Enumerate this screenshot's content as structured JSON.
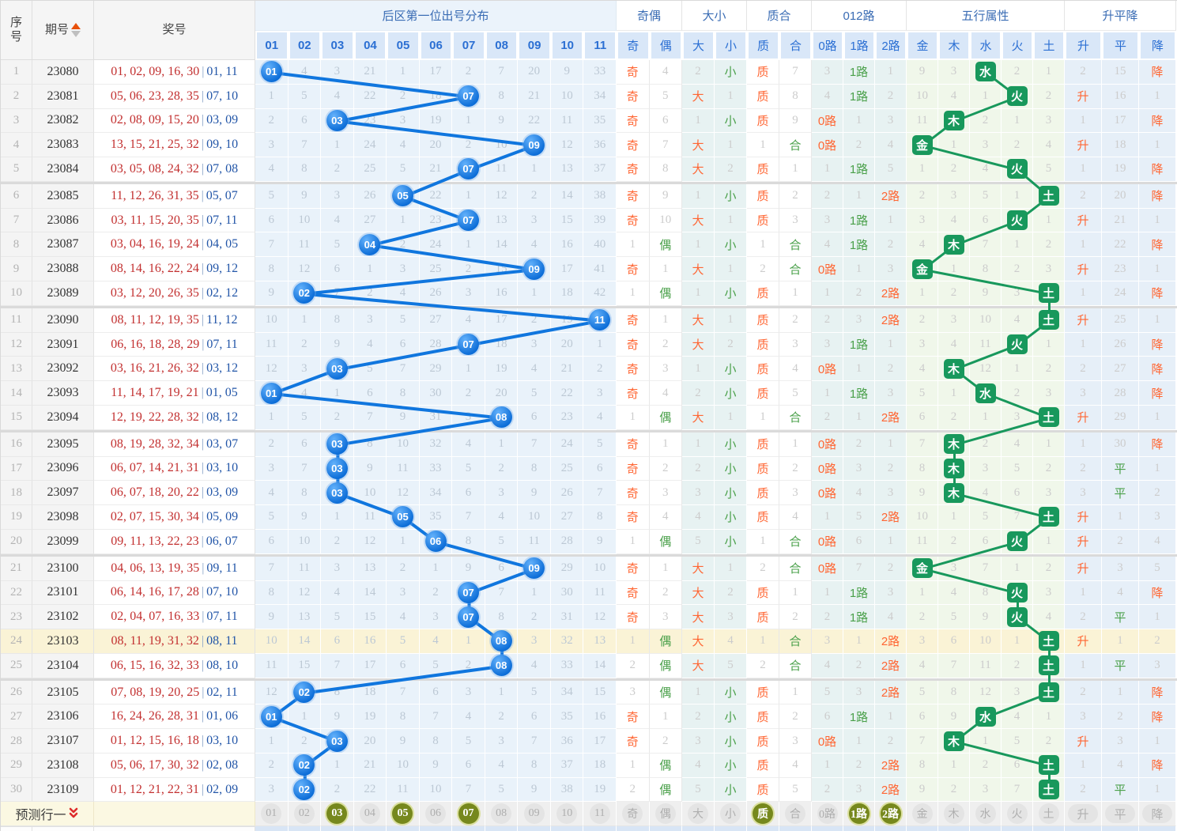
{
  "header": {
    "col_seq": "序号",
    "col_period": "期号",
    "col_numbers": "奖号",
    "dist_title": "后区第一位出号分布",
    "dist_cols": [
      "01",
      "02",
      "03",
      "04",
      "05",
      "06",
      "07",
      "08",
      "09",
      "10",
      "11"
    ],
    "groups": [
      {
        "label": "奇偶",
        "cols": [
          "奇",
          "偶"
        ]
      },
      {
        "label": "大小",
        "cols": [
          "大",
          "小"
        ]
      },
      {
        "label": "质合",
        "cols": [
          "质",
          "合"
        ]
      },
      {
        "label": "012路",
        "cols": [
          "0路",
          "1路",
          "2路"
        ]
      },
      {
        "label": "五行属性",
        "cols": [
          "金",
          "木",
          "水",
          "火",
          "土"
        ]
      },
      {
        "label": "升平降",
        "cols": [
          "升",
          "平",
          "降"
        ]
      }
    ]
  },
  "colors": {
    "ball_blue": "#1076de",
    "element_green": "#18985c",
    "hit_orange": "#ff6633",
    "hit_green": "#4aa04a",
    "highlight_row": "#faf3d6",
    "prediction_olive": "#76881d"
  },
  "rows": [
    {
      "s": 1,
      "p": "23080",
      "f": "01, 02, 09, 16, 30",
      "b": "01, 11",
      "d": [
        "01",
        4,
        3,
        21,
        1,
        17,
        2,
        7,
        20,
        9,
        33
      ],
      "oe": [
        "奇",
        4
      ],
      "ds": [
        2,
        "小"
      ],
      "zh": [
        "质",
        7
      ],
      "lu": [
        3,
        "1路",
        1
      ],
      "wx": [
        9,
        3,
        "水",
        2,
        1
      ],
      "sp": [
        2,
        15,
        "降"
      ],
      "hl": false
    },
    {
      "s": 2,
      "p": "23081",
      "f": "05, 06, 23, 28, 35",
      "b": "07, 10",
      "d": [
        1,
        5,
        4,
        22,
        2,
        18,
        "07",
        8,
        21,
        10,
        34
      ],
      "oe": [
        "奇",
        5
      ],
      "ds": [
        "大",
        1
      ],
      "zh": [
        "质",
        8
      ],
      "lu": [
        4,
        "1路",
        2
      ],
      "wx": [
        10,
        4,
        1,
        "火",
        2
      ],
      "sp": [
        "升",
        16,
        1
      ],
      "hl": false
    },
    {
      "s": 3,
      "p": "23082",
      "f": "02, 08, 09, 15, 20",
      "b": "03, 09",
      "d": [
        2,
        6,
        "03",
        23,
        3,
        19,
        1,
        9,
        22,
        11,
        35
      ],
      "oe": [
        "奇",
        6
      ],
      "ds": [
        1,
        "小"
      ],
      "zh": [
        "质",
        9
      ],
      "lu": [
        "0路",
        1,
        3
      ],
      "wx": [
        11,
        "木",
        2,
        1,
        3
      ],
      "sp": [
        1,
        17,
        "降"
      ],
      "hl": false
    },
    {
      "s": 4,
      "p": "23083",
      "f": "13, 15, 21, 25, 32",
      "b": "09, 10",
      "d": [
        3,
        7,
        1,
        24,
        4,
        20,
        2,
        10,
        "09",
        12,
        36
      ],
      "oe": [
        "奇",
        7
      ],
      "ds": [
        "大",
        1
      ],
      "zh": [
        1,
        "合"
      ],
      "lu": [
        "0路",
        2,
        4
      ],
      "wx": [
        "金",
        1,
        3,
        2,
        4
      ],
      "sp": [
        "升",
        18,
        1
      ],
      "hl": false
    },
    {
      "s": 5,
      "p": "23084",
      "f": "03, 05, 08, 24, 32",
      "b": "07, 08",
      "d": [
        4,
        8,
        2,
        25,
        5,
        21,
        "07",
        11,
        1,
        13,
        37
      ],
      "oe": [
        "奇",
        8
      ],
      "ds": [
        "大",
        2
      ],
      "zh": [
        "质",
        1
      ],
      "lu": [
        1,
        "1路",
        5
      ],
      "wx": [
        1,
        2,
        4,
        "火",
        5
      ],
      "sp": [
        1,
        19,
        "降"
      ],
      "hl": false
    },
    {
      "s": 6,
      "p": "23085",
      "f": "11, 12, 26, 31, 35",
      "b": "05, 07",
      "d": [
        5,
        9,
        3,
        26,
        "05",
        22,
        1,
        12,
        2,
        14,
        38
      ],
      "oe": [
        "奇",
        9
      ],
      "ds": [
        1,
        "小"
      ],
      "zh": [
        "质",
        2
      ],
      "lu": [
        2,
        1,
        "2路"
      ],
      "wx": [
        2,
        3,
        5,
        1,
        "土"
      ],
      "sp": [
        2,
        20,
        "降"
      ],
      "hl": false
    },
    {
      "s": 7,
      "p": "23086",
      "f": "03, 11, 15, 20, 35",
      "b": "07, 11",
      "d": [
        6,
        10,
        4,
        27,
        1,
        23,
        "07",
        13,
        3,
        15,
        39
      ],
      "oe": [
        "奇",
        10
      ],
      "ds": [
        "大",
        1
      ],
      "zh": [
        "质",
        3
      ],
      "lu": [
        3,
        "1路",
        1
      ],
      "wx": [
        3,
        4,
        6,
        "火",
        1
      ],
      "sp": [
        "升",
        21,
        1
      ],
      "hl": false
    },
    {
      "s": 8,
      "p": "23087",
      "f": "03, 04, 16, 19, 24",
      "b": "04, 05",
      "d": [
        7,
        11,
        5,
        "04",
        2,
        24,
        1,
        14,
        4,
        16,
        40
      ],
      "oe": [
        1,
        "偶"
      ],
      "ds": [
        1,
        "小"
      ],
      "zh": [
        1,
        "合"
      ],
      "lu": [
        4,
        "1路",
        2
      ],
      "wx": [
        4,
        "木",
        7,
        1,
        2
      ],
      "sp": [
        1,
        22,
        "降"
      ],
      "hl": false
    },
    {
      "s": 9,
      "p": "23088",
      "f": "08, 14, 16, 22, 24",
      "b": "09, 12",
      "d": [
        8,
        12,
        6,
        1,
        3,
        25,
        2,
        15,
        "09",
        17,
        41
      ],
      "oe": [
        "奇",
        1
      ],
      "ds": [
        "大",
        1
      ],
      "zh": [
        2,
        "合"
      ],
      "lu": [
        "0路",
        1,
        3
      ],
      "wx": [
        "金",
        1,
        8,
        2,
        3
      ],
      "sp": [
        "升",
        23,
        1
      ],
      "hl": false
    },
    {
      "s": 10,
      "p": "23089",
      "f": "03, 12, 20, 26, 35",
      "b": "02, 12",
      "d": [
        9,
        "02",
        7,
        2,
        4,
        26,
        3,
        16,
        1,
        18,
        42
      ],
      "oe": [
        1,
        "偶"
      ],
      "ds": [
        1,
        "小"
      ],
      "zh": [
        "质",
        1
      ],
      "lu": [
        1,
        2,
        "2路"
      ],
      "wx": [
        1,
        2,
        9,
        3,
        "土"
      ],
      "sp": [
        1,
        24,
        "降"
      ],
      "hl": false
    },
    {
      "s": 11,
      "p": "23090",
      "f": "08, 11, 12, 19, 35",
      "b": "11, 12",
      "d": [
        10,
        1,
        8,
        3,
        5,
        27,
        4,
        17,
        2,
        19,
        "11"
      ],
      "oe": [
        "奇",
        1
      ],
      "ds": [
        "大",
        1
      ],
      "zh": [
        "质",
        2
      ],
      "lu": [
        2,
        3,
        "2路"
      ],
      "wx": [
        2,
        3,
        10,
        4,
        "土"
      ],
      "sp": [
        "升",
        25,
        1
      ],
      "hl": false
    },
    {
      "s": 12,
      "p": "23091",
      "f": "06, 16, 18, 28, 29",
      "b": "07, 11",
      "d": [
        11,
        2,
        9,
        4,
        6,
        28,
        "07",
        18,
        3,
        20,
        1
      ],
      "oe": [
        "奇",
        2
      ],
      "ds": [
        "大",
        2
      ],
      "zh": [
        "质",
        3
      ],
      "lu": [
        3,
        "1路",
        1
      ],
      "wx": [
        3,
        4,
        11,
        "火",
        1
      ],
      "sp": [
        1,
        26,
        "降"
      ],
      "hl": false
    },
    {
      "s": 13,
      "p": "23092",
      "f": "03, 16, 21, 26, 32",
      "b": "03, 12",
      "d": [
        12,
        3,
        "03",
        5,
        7,
        29,
        1,
        19,
        4,
        21,
        2
      ],
      "oe": [
        "奇",
        3
      ],
      "ds": [
        1,
        "小"
      ],
      "zh": [
        "质",
        4
      ],
      "lu": [
        "0路",
        1,
        2
      ],
      "wx": [
        4,
        "木",
        12,
        1,
        2
      ],
      "sp": [
        2,
        27,
        "降"
      ],
      "hl": false
    },
    {
      "s": 14,
      "p": "23093",
      "f": "11, 14, 17, 19, 21",
      "b": "01, 05",
      "d": [
        "01",
        4,
        1,
        6,
        8,
        30,
        2,
        20,
        5,
        22,
        3
      ],
      "oe": [
        "奇",
        4
      ],
      "ds": [
        2,
        "小"
      ],
      "zh": [
        "质",
        5
      ],
      "lu": [
        1,
        "1路",
        3
      ],
      "wx": [
        5,
        1,
        "水",
        2,
        3
      ],
      "sp": [
        3,
        28,
        "降"
      ],
      "hl": false
    },
    {
      "s": 15,
      "p": "23094",
      "f": "12, 19, 22, 28, 32",
      "b": "08, 12",
      "d": [
        1,
        5,
        2,
        7,
        9,
        31,
        3,
        "08",
        6,
        23,
        4
      ],
      "oe": [
        1,
        "偶"
      ],
      "ds": [
        "大",
        1
      ],
      "zh": [
        1,
        "合"
      ],
      "lu": [
        2,
        1,
        "2路"
      ],
      "wx": [
        6,
        2,
        1,
        3,
        "土"
      ],
      "sp": [
        "升",
        29,
        1
      ],
      "hl": false
    },
    {
      "s": 16,
      "p": "23095",
      "f": "08, 19, 28, 32, 34",
      "b": "03, 07",
      "d": [
        2,
        6,
        "03",
        8,
        10,
        32,
        4,
        1,
        7,
        24,
        5
      ],
      "oe": [
        "奇",
        1
      ],
      "ds": [
        1,
        "小"
      ],
      "zh": [
        "质",
        1
      ],
      "lu": [
        "0路",
        2,
        1
      ],
      "wx": [
        7,
        "木",
        2,
        4,
        1
      ],
      "sp": [
        1,
        30,
        "降"
      ],
      "hl": false
    },
    {
      "s": 17,
      "p": "23096",
      "f": "06, 07, 14, 21, 31",
      "b": "03, 10",
      "d": [
        3,
        7,
        "03",
        9,
        11,
        33,
        5,
        2,
        8,
        25,
        6
      ],
      "oe": [
        "奇",
        2
      ],
      "ds": [
        2,
        "小"
      ],
      "zh": [
        "质",
        2
      ],
      "lu": [
        "0路",
        3,
        2
      ],
      "wx": [
        8,
        "木",
        3,
        5,
        2
      ],
      "sp": [
        2,
        "平",
        1
      ],
      "hl": false
    },
    {
      "s": 18,
      "p": "23097",
      "f": "06, 07, 18, 20, 22",
      "b": "03, 09",
      "d": [
        4,
        8,
        "03",
        10,
        12,
        34,
        6,
        3,
        9,
        26,
        7
      ],
      "oe": [
        "奇",
        3
      ],
      "ds": [
        3,
        "小"
      ],
      "zh": [
        "质",
        3
      ],
      "lu": [
        "0路",
        4,
        3
      ],
      "wx": [
        9,
        "木",
        4,
        6,
        3
      ],
      "sp": [
        3,
        "平",
        2
      ],
      "hl": false
    },
    {
      "s": 19,
      "p": "23098",
      "f": "02, 07, 15, 30, 34",
      "b": "05, 09",
      "d": [
        5,
        9,
        1,
        11,
        "05",
        35,
        7,
        4,
        10,
        27,
        8
      ],
      "oe": [
        "奇",
        4
      ],
      "ds": [
        4,
        "小"
      ],
      "zh": [
        "质",
        4
      ],
      "lu": [
        1,
        5,
        "2路"
      ],
      "wx": [
        10,
        1,
        5,
        7,
        "土"
      ],
      "sp": [
        "升",
        1,
        3
      ],
      "hl": false
    },
    {
      "s": 20,
      "p": "23099",
      "f": "09, 11, 13, 22, 23",
      "b": "06, 07",
      "d": [
        6,
        10,
        2,
        12,
        1,
        "06",
        8,
        5,
        11,
        28,
        9
      ],
      "oe": [
        1,
        "偶"
      ],
      "ds": [
        5,
        "小"
      ],
      "zh": [
        1,
        "合"
      ],
      "lu": [
        "0路",
        6,
        1
      ],
      "wx": [
        11,
        2,
        6,
        "火",
        1
      ],
      "sp": [
        "升",
        2,
        4
      ],
      "hl": false
    },
    {
      "s": 21,
      "p": "23100",
      "f": "04, 06, 13, 19, 35",
      "b": "09, 11",
      "d": [
        7,
        11,
        3,
        13,
        2,
        1,
        9,
        6,
        "09",
        29,
        10
      ],
      "oe": [
        "奇",
        1
      ],
      "ds": [
        "大",
        1
      ],
      "zh": [
        2,
        "合"
      ],
      "lu": [
        "0路",
        7,
        2
      ],
      "wx": [
        "金",
        3,
        7,
        1,
        2
      ],
      "sp": [
        "升",
        3,
        5
      ],
      "hl": false
    },
    {
      "s": 22,
      "p": "23101",
      "f": "06, 14, 16, 17, 28",
      "b": "07, 10",
      "d": [
        8,
        12,
        4,
        14,
        3,
        2,
        "07",
        7,
        1,
        30,
        11
      ],
      "oe": [
        "奇",
        2
      ],
      "ds": [
        "大",
        2
      ],
      "zh": [
        "质",
        1
      ],
      "lu": [
        1,
        "1路",
        3
      ],
      "wx": [
        1,
        4,
        8,
        "火",
        3
      ],
      "sp": [
        1,
        4,
        "降"
      ],
      "hl": false
    },
    {
      "s": 23,
      "p": "23102",
      "f": "02, 04, 07, 16, 33",
      "b": "07, 11",
      "d": [
        9,
        13,
        5,
        15,
        4,
        3,
        "07",
        8,
        2,
        31,
        12
      ],
      "oe": [
        "奇",
        3
      ],
      "ds": [
        "大",
        3
      ],
      "zh": [
        "质",
        2
      ],
      "lu": [
        2,
        "1路",
        4
      ],
      "wx": [
        2,
        5,
        9,
        "火",
        4
      ],
      "sp": [
        2,
        "平",
        1
      ],
      "hl": false
    },
    {
      "s": 24,
      "p": "23103",
      "f": "08, 11, 19, 31, 32",
      "b": "08, 11",
      "d": [
        10,
        14,
        6,
        16,
        5,
        4,
        1,
        "08",
        3,
        32,
        13
      ],
      "oe": [
        1,
        "偶"
      ],
      "ds": [
        "大",
        4
      ],
      "zh": [
        1,
        "合"
      ],
      "lu": [
        3,
        1,
        "2路"
      ],
      "wx": [
        3,
        6,
        10,
        1,
        "土"
      ],
      "sp": [
        "升",
        1,
        2
      ],
      "hl": true
    },
    {
      "s": 25,
      "p": "23104",
      "f": "06, 15, 16, 32, 33",
      "b": "08, 10",
      "d": [
        11,
        15,
        7,
        17,
        6,
        5,
        2,
        "08",
        4,
        33,
        14
      ],
      "oe": [
        2,
        "偶"
      ],
      "ds": [
        "大",
        5
      ],
      "zh": [
        2,
        "合"
      ],
      "lu": [
        4,
        2,
        "2路"
      ],
      "wx": [
        4,
        7,
        11,
        2,
        "土"
      ],
      "sp": [
        1,
        "平",
        3
      ],
      "hl": false
    },
    {
      "s": 26,
      "p": "23105",
      "f": "07, 08, 19, 20, 25",
      "b": "02, 11",
      "d": [
        12,
        "02",
        8,
        18,
        7,
        6,
        3,
        1,
        5,
        34,
        15
      ],
      "oe": [
        3,
        "偶"
      ],
      "ds": [
        1,
        "小"
      ],
      "zh": [
        "质",
        1
      ],
      "lu": [
        5,
        3,
        "2路"
      ],
      "wx": [
        5,
        8,
        12,
        3,
        "土"
      ],
      "sp": [
        2,
        1,
        "降"
      ],
      "hl": false
    },
    {
      "s": 27,
      "p": "23106",
      "f": "16, 24, 26, 28, 31",
      "b": "01, 06",
      "d": [
        "01",
        1,
        9,
        19,
        8,
        7,
        4,
        2,
        6,
        35,
        16
      ],
      "oe": [
        "奇",
        1
      ],
      "ds": [
        2,
        "小"
      ],
      "zh": [
        "质",
        2
      ],
      "lu": [
        6,
        "1路",
        1
      ],
      "wx": [
        6,
        9,
        "水",
        4,
        1
      ],
      "sp": [
        3,
        2,
        "降"
      ],
      "hl": false
    },
    {
      "s": 28,
      "p": "23107",
      "f": "01, 12, 15, 16, 18",
      "b": "03, 10",
      "d": [
        1,
        2,
        "03",
        20,
        9,
        8,
        5,
        3,
        7,
        36,
        17
      ],
      "oe": [
        "奇",
        2
      ],
      "ds": [
        3,
        "小"
      ],
      "zh": [
        "质",
        3
      ],
      "lu": [
        "0路",
        1,
        2
      ],
      "wx": [
        7,
        "木",
        1,
        5,
        2
      ],
      "sp": [
        "升",
        3,
        1
      ],
      "hl": false
    },
    {
      "s": 29,
      "p": "23108",
      "f": "05, 06, 17, 30, 32",
      "b": "02, 08",
      "d": [
        2,
        "02",
        1,
        21,
        10,
        9,
        6,
        4,
        8,
        37,
        18
      ],
      "oe": [
        1,
        "偶"
      ],
      "ds": [
        4,
        "小"
      ],
      "zh": [
        "质",
        4
      ],
      "lu": [
        1,
        2,
        "2路"
      ],
      "wx": [
        8,
        1,
        2,
        6,
        "土"
      ],
      "sp": [
        1,
        4,
        "降"
      ],
      "hl": false
    },
    {
      "s": 30,
      "p": "23109",
      "f": "01, 12, 21, 22, 31",
      "b": "02, 09",
      "d": [
        3,
        "02",
        2,
        22,
        11,
        10,
        7,
        5,
        9,
        38,
        19
      ],
      "oe": [
        2,
        "偶"
      ],
      "ds": [
        5,
        "小"
      ],
      "zh": [
        "质",
        5
      ],
      "lu": [
        2,
        3,
        "2路"
      ],
      "wx": [
        9,
        2,
        3,
        7,
        "土"
      ],
      "sp": [
        2,
        "平",
        1
      ],
      "hl": false
    }
  ],
  "footer": {
    "label": "预测行一",
    "cells": [
      "01",
      "02",
      "03",
      "04",
      "05",
      "06",
      "07",
      "08",
      "09",
      "10",
      "11",
      "奇",
      "偶",
      "大",
      "小",
      "质",
      "合",
      "0路",
      "1路",
      "2路",
      "金",
      "木",
      "水",
      "火",
      "土",
      "升",
      "平",
      "降"
    ],
    "highlighted_indexes": [
      2,
      4,
      6,
      15,
      18,
      19
    ],
    "pill_indexes": [
      25,
      26,
      27
    ]
  }
}
